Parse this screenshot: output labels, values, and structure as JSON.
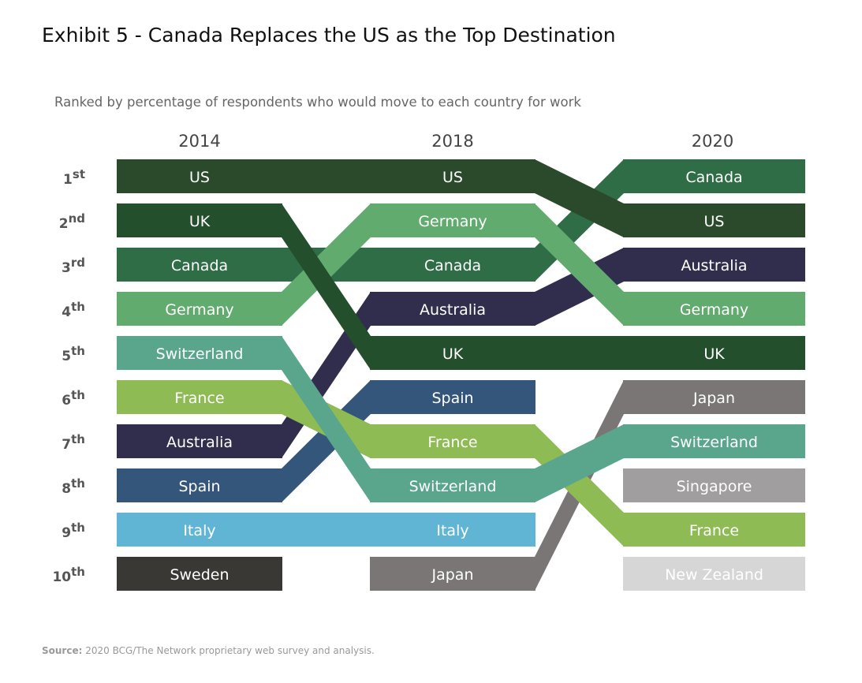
{
  "title": "Exhibit 5 - Canada Replaces the US as the Top Destination",
  "source_label": "Source:",
  "source_text": "2020 BCG/The Network proprietary web survey and analysis.",
  "chart_data": {
    "type": "bump",
    "title": "Exhibit 5 - Canada Replaces the US as the Top Destination",
    "subtitle": "Ranked by percentage of respondents who would move to each country for work",
    "years": [
      "2014",
      "2018",
      "2020"
    ],
    "rank_labels": [
      {
        "num": "1",
        "suffix": "st"
      },
      {
        "num": "2",
        "suffix": "nd"
      },
      {
        "num": "3",
        "suffix": "rd"
      },
      {
        "num": "4",
        "suffix": "th"
      },
      {
        "num": "5",
        "suffix": "th"
      },
      {
        "num": "6",
        "suffix": "th"
      },
      {
        "num": "7",
        "suffix": "th"
      },
      {
        "num": "8",
        "suffix": "th"
      },
      {
        "num": "9",
        "suffix": "th"
      },
      {
        "num": "10",
        "suffix": "th"
      }
    ],
    "series": [
      {
        "name": "US",
        "color": "#2a4a2b",
        "ranks": [
          1,
          1,
          2
        ]
      },
      {
        "name": "UK",
        "color": "#244f2d",
        "ranks": [
          2,
          5,
          5
        ]
      },
      {
        "name": "Canada",
        "color": "#2f6d47",
        "ranks": [
          3,
          3,
          1
        ]
      },
      {
        "name": "Germany",
        "color": "#62ab6e",
        "ranks": [
          4,
          2,
          4
        ]
      },
      {
        "name": "Switzerland",
        "color": "#5aa68d",
        "ranks": [
          5,
          8,
          7
        ]
      },
      {
        "name": "France",
        "color": "#8fbb55",
        "ranks": [
          6,
          7,
          9
        ]
      },
      {
        "name": "Australia",
        "color": "#312e4d",
        "ranks": [
          7,
          4,
          3
        ]
      },
      {
        "name": "Spain",
        "color": "#34567a",
        "ranks": [
          8,
          6,
          null
        ]
      },
      {
        "name": "Italy",
        "color": "#60b5d4",
        "ranks": [
          9,
          9,
          null
        ]
      },
      {
        "name": "Sweden",
        "color": "#393835",
        "ranks": [
          10,
          null,
          null
        ]
      },
      {
        "name": "Japan",
        "color": "#7a7676",
        "ranks": [
          null,
          10,
          6
        ]
      },
      {
        "name": "Singapore",
        "color": "#a09e9e",
        "ranks": [
          null,
          null,
          8
        ]
      },
      {
        "name": "New Zealand",
        "color": "#d7d6d6",
        "ranks": [
          null,
          null,
          10
        ]
      }
    ]
  }
}
